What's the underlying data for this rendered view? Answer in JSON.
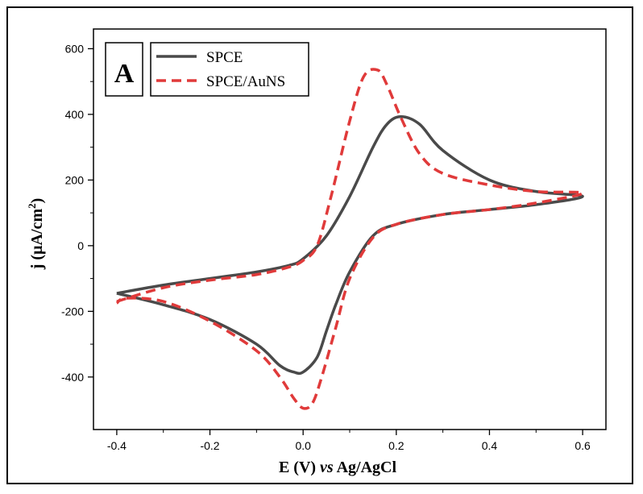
{
  "chart_data": {
    "type": "line",
    "panel_label": "A",
    "xlabel_parts": [
      "E (V) ",
      "vs",
      " Ag/AgCl"
    ],
    "ylabel_parts": [
      "j (µA/cm",
      "2",
      ")"
    ],
    "xlim": [
      -0.45,
      0.65
    ],
    "ylim": [
      -560,
      660
    ],
    "xticks": [
      -0.4,
      -0.2,
      0.0,
      0.2,
      0.4,
      0.6
    ],
    "xtick_labels": [
      "-0.4",
      "-0.2",
      "0.0",
      "0.2",
      "0.4",
      "0.6"
    ],
    "yticks": [
      -400,
      -200,
      0,
      200,
      400,
      600
    ],
    "ytick_labels": [
      "-400",
      "-200",
      "0",
      "200",
      "400",
      "600"
    ],
    "legend_position": "top-left",
    "series": [
      {
        "name": "SPCE",
        "color": "#4a4a4a",
        "style": "solid",
        "x": [
          -0.4,
          -0.3,
          -0.2,
          -0.1,
          -0.03,
          0.0,
          0.05,
          0.1,
          0.15,
          0.18,
          0.21,
          0.25,
          0.3,
          0.4,
          0.5,
          0.6,
          0.5,
          0.4,
          0.3,
          0.2,
          0.15,
          0.1,
          0.07,
          0.05,
          0.03,
          0.0,
          -0.02,
          -0.05,
          -0.1,
          -0.2,
          -0.3,
          -0.4
        ],
        "y": [
          -145,
          -120,
          -100,
          -80,
          -60,
          -40,
          30,
          150,
          300,
          370,
          393,
          370,
          290,
          200,
          165,
          150,
          125,
          110,
          95,
          65,
          30,
          -80,
          -180,
          -260,
          -340,
          -385,
          -385,
          -365,
          -300,
          -225,
          -180,
          -145
        ]
      },
      {
        "name": "SPCE/AuNS",
        "color": "#e03a3a",
        "style": "dashed",
        "x": [
          -0.4,
          -0.3,
          -0.2,
          -0.1,
          -0.03,
          0.0,
          0.03,
          0.06,
          0.1,
          0.13,
          0.16,
          0.18,
          0.21,
          0.25,
          0.3,
          0.4,
          0.5,
          0.6,
          0.5,
          0.4,
          0.3,
          0.2,
          0.15,
          0.1,
          0.07,
          0.04,
          0.02,
          0.0,
          -0.02,
          -0.05,
          -0.1,
          -0.2,
          -0.3,
          -0.38,
          -0.4
        ],
        "y": [
          -170,
          -128,
          -105,
          -88,
          -65,
          -45,
          0,
          150,
          380,
          515,
          535,
          490,
          390,
          280,
          220,
          185,
          165,
          160,
          130,
          110,
          95,
          65,
          25,
          -100,
          -250,
          -400,
          -480,
          -495,
          -465,
          -400,
          -320,
          -230,
          -170,
          -160,
          -175
        ]
      }
    ]
  }
}
